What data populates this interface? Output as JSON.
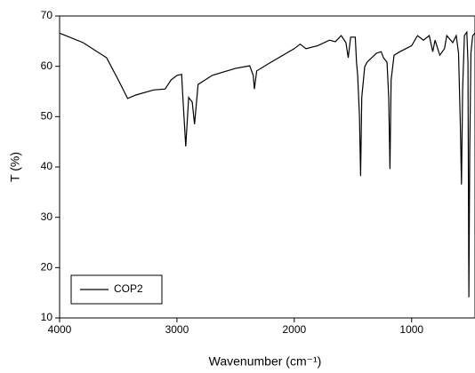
{
  "chart_data": {
    "type": "line",
    "xlabel": "Wavenumber (cm⁻¹)",
    "ylabel": "T (%)",
    "x": [
      4000,
      3800,
      3600,
      3500,
      3420,
      3350,
      3200,
      3100,
      3050,
      3000,
      2960,
      2950,
      2925,
      2900,
      2870,
      2850,
      2820,
      2700,
      2500,
      2380,
      2350,
      2340,
      2320,
      2200,
      2000,
      1950,
      1900,
      1800,
      1700,
      1650,
      1600,
      1560,
      1540,
      1520,
      1480,
      1470,
      1460,
      1445,
      1435,
      1425,
      1400,
      1380,
      1300,
      1260,
      1240,
      1210,
      1195,
      1185,
      1175,
      1150,
      1100,
      1000,
      950,
      900,
      850,
      820,
      800,
      760,
      720,
      700,
      650,
      620,
      600,
      585,
      575,
      565,
      550,
      530,
      520,
      512,
      505,
      495,
      480,
      460
    ],
    "series": [
      {
        "name": "COP2",
        "color": "#000000",
        "values": [
          66.6,
          64.7,
          61.7,
          57.3,
          53.6,
          54.3,
          55.3,
          55.5,
          57.3,
          58.2,
          58.4,
          54.1,
          44.1,
          53.8,
          52.9,
          48.5,
          56.4,
          58.2,
          59.6,
          60.1,
          58.2,
          55.5,
          59.1,
          60.8,
          63.5,
          64.4,
          63.5,
          64.1,
          65.2,
          64.9,
          66.1,
          64.7,
          61.7,
          65.8,
          65.8,
          60.8,
          58.2,
          50.2,
          38.2,
          53.8,
          59.9,
          60.8,
          62.6,
          62.9,
          61.7,
          60.8,
          53.8,
          39.6,
          57.3,
          62.2,
          62.9,
          64.1,
          66.1,
          65.2,
          66.1,
          62.9,
          65.2,
          62.2,
          63.5,
          66.1,
          64.7,
          66.1,
          62.6,
          48.5,
          36.5,
          55.5,
          66.1,
          66.8,
          60.8,
          14.1,
          43.2,
          62.6,
          66.1,
          66.6
        ]
      }
    ],
    "xlim": [
      4000,
      460
    ],
    "ylim": [
      10,
      70
    ],
    "xticks": [
      {
        "value": 4000,
        "label": "4000"
      },
      {
        "value": 3000,
        "label": "3000"
      },
      {
        "value": 2000,
        "label": "2000"
      },
      {
        "value": 1000,
        "label": "1000"
      }
    ],
    "yticks": [
      10,
      20,
      30,
      40,
      50,
      60,
      70
    ],
    "legend": "lower left"
  }
}
